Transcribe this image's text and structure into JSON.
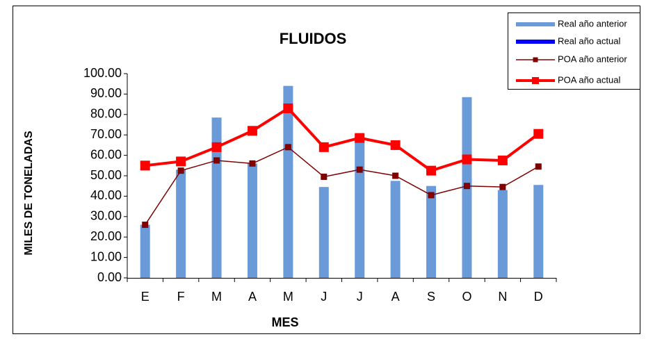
{
  "chart_data": {
    "type": "bar-line",
    "title": "FLUIDOS",
    "x_label": "MES",
    "y_label": "MILES DE TONELADAS",
    "categories": [
      "E",
      "F",
      "M",
      "A",
      "M",
      "J",
      "J",
      "A",
      "S",
      "O",
      "N",
      "D"
    ],
    "series": [
      {
        "name": "Real año anterior",
        "kind": "bar",
        "color": "#6a9bd8",
        "values": [
          26,
          53,
          78.5,
          56,
          94,
          44.5,
          70.5,
          47.5,
          45,
          88.5,
          43,
          45.5
        ]
      },
      {
        "name": "Real año actual",
        "kind": "bar",
        "color": "#0000ff",
        "values": [
          null,
          null,
          null,
          null,
          null,
          null,
          null,
          null,
          null,
          null,
          null,
          null
        ]
      },
      {
        "name": "POA año anterior",
        "kind": "line",
        "color": "#800000",
        "values": [
          26,
          52.5,
          57.5,
          56,
          64,
          49.5,
          53,
          50,
          40.5,
          45,
          44.5,
          54.5
        ]
      },
      {
        "name": "POA año actual",
        "kind": "line",
        "color": "#ff0000",
        "values": [
          55,
          57,
          64,
          72,
          83,
          64,
          68.5,
          65,
          52.5,
          58,
          57.5,
          70.5
        ]
      }
    ],
    "ylim": [
      0,
      100
    ],
    "yticks": [
      {
        "value": 0,
        "label": "0.00"
      },
      {
        "value": 10,
        "label": "10.00"
      },
      {
        "value": 20,
        "label": "20.00"
      },
      {
        "value": 30,
        "label": "30.00"
      },
      {
        "value": 40,
        "label": "40.00"
      },
      {
        "value": 50,
        "label": "50.00"
      },
      {
        "value": 60,
        "label": "60.00"
      },
      {
        "value": 70,
        "label": "70.00"
      },
      {
        "value": 80,
        "label": "80.00"
      },
      {
        "value": 90,
        "label": "90.00"
      },
      {
        "value": 100,
        "label": "100.00"
      }
    ],
    "legend": "top-right"
  }
}
